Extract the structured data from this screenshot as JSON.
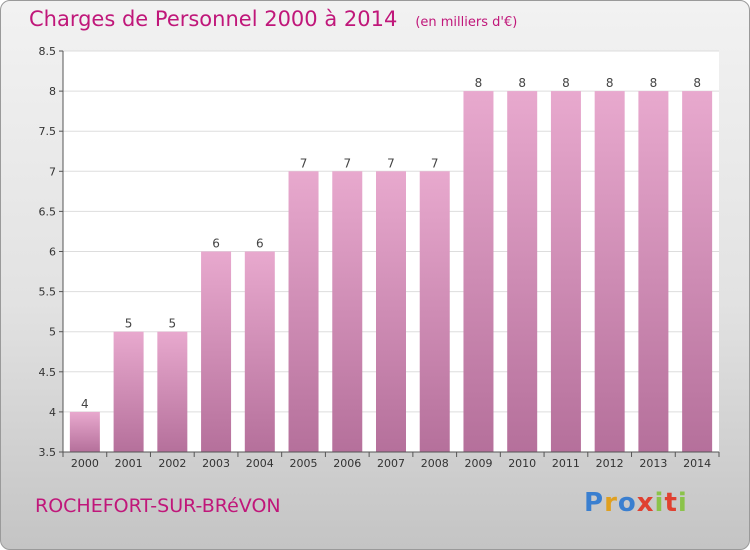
{
  "header": {
    "title": "Charges de Personnel 2000 à 2014",
    "subtitle": "(en milliers d'€)"
  },
  "footer": {
    "commune": "ROCHEFORT-SUR-BRéVON",
    "logo": [
      "P",
      "r",
      "o",
      "x",
      "i",
      "t",
      "i"
    ]
  },
  "colors": {
    "title": "#c0177a",
    "bar_light": "#e8a9ce",
    "bar_dark": "#b5709b"
  },
  "chart_data": {
    "type": "bar",
    "title": "Charges de Personnel 2000 à 2014",
    "subtitle": "(en milliers d'€)",
    "categories": [
      "2000",
      "2001",
      "2002",
      "2003",
      "2004",
      "2005",
      "2006",
      "2007",
      "2008",
      "2009",
      "2010",
      "2011",
      "2012",
      "2013",
      "2014"
    ],
    "values": [
      4,
      5,
      5,
      6,
      6,
      7,
      7,
      7,
      7,
      8,
      8,
      8,
      8,
      8,
      8
    ],
    "ylim": [
      3.5,
      8.5
    ],
    "yticks": [
      "3.5",
      "4",
      "4.5",
      "5",
      "5.5",
      "6",
      "6.5",
      "7",
      "7.5",
      "8",
      "8.5"
    ],
    "grid": true
  }
}
